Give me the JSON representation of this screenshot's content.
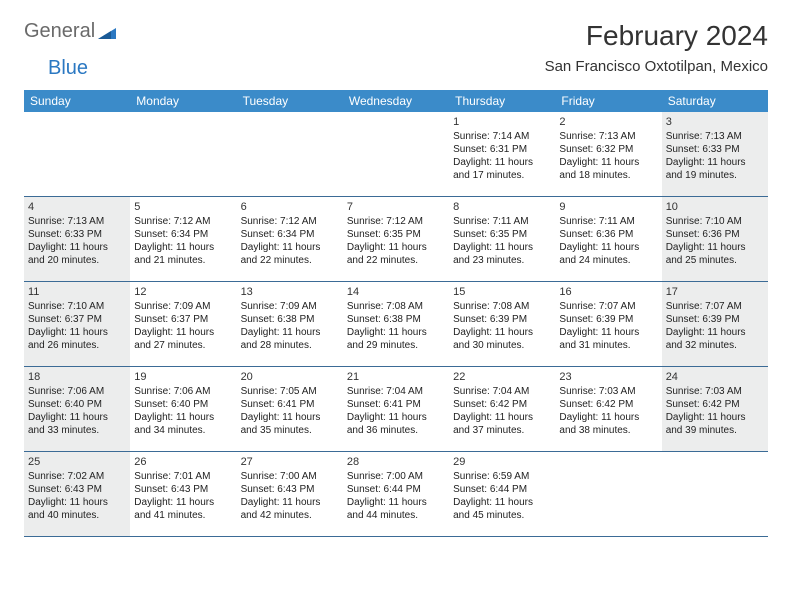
{
  "logo": {
    "text1": "General",
    "text2": "Blue"
  },
  "title": "February 2024",
  "location": "San Francisco Oxtotilpan, Mexico",
  "colors": {
    "header_bg": "#3b8bc9",
    "header_text": "#ffffff",
    "row_border": "#3b6b96",
    "shaded_bg": "#eceded",
    "logo_gray": "#6a6a6a",
    "logo_blue": "#2b78c2"
  },
  "day_headers": [
    "Sunday",
    "Monday",
    "Tuesday",
    "Wednesday",
    "Thursday",
    "Friday",
    "Saturday"
  ],
  "weeks": [
    [
      {
        "day": "",
        "sunrise": "",
        "sunset": "",
        "daylight1": "",
        "daylight2": ""
      },
      {
        "day": "",
        "sunrise": "",
        "sunset": "",
        "daylight1": "",
        "daylight2": ""
      },
      {
        "day": "",
        "sunrise": "",
        "sunset": "",
        "daylight1": "",
        "daylight2": ""
      },
      {
        "day": "",
        "sunrise": "",
        "sunset": "",
        "daylight1": "",
        "daylight2": ""
      },
      {
        "day": "1",
        "sunrise": "Sunrise: 7:14 AM",
        "sunset": "Sunset: 6:31 PM",
        "daylight1": "Daylight: 11 hours",
        "daylight2": "and 17 minutes."
      },
      {
        "day": "2",
        "sunrise": "Sunrise: 7:13 AM",
        "sunset": "Sunset: 6:32 PM",
        "daylight1": "Daylight: 11 hours",
        "daylight2": "and 18 minutes."
      },
      {
        "day": "3",
        "sunrise": "Sunrise: 7:13 AM",
        "sunset": "Sunset: 6:33 PM",
        "daylight1": "Daylight: 11 hours",
        "daylight2": "and 19 minutes."
      }
    ],
    [
      {
        "day": "4",
        "sunrise": "Sunrise: 7:13 AM",
        "sunset": "Sunset: 6:33 PM",
        "daylight1": "Daylight: 11 hours",
        "daylight2": "and 20 minutes."
      },
      {
        "day": "5",
        "sunrise": "Sunrise: 7:12 AM",
        "sunset": "Sunset: 6:34 PM",
        "daylight1": "Daylight: 11 hours",
        "daylight2": "and 21 minutes."
      },
      {
        "day": "6",
        "sunrise": "Sunrise: 7:12 AM",
        "sunset": "Sunset: 6:34 PM",
        "daylight1": "Daylight: 11 hours",
        "daylight2": "and 22 minutes."
      },
      {
        "day": "7",
        "sunrise": "Sunrise: 7:12 AM",
        "sunset": "Sunset: 6:35 PM",
        "daylight1": "Daylight: 11 hours",
        "daylight2": "and 22 minutes."
      },
      {
        "day": "8",
        "sunrise": "Sunrise: 7:11 AM",
        "sunset": "Sunset: 6:35 PM",
        "daylight1": "Daylight: 11 hours",
        "daylight2": "and 23 minutes."
      },
      {
        "day": "9",
        "sunrise": "Sunrise: 7:11 AM",
        "sunset": "Sunset: 6:36 PM",
        "daylight1": "Daylight: 11 hours",
        "daylight2": "and 24 minutes."
      },
      {
        "day": "10",
        "sunrise": "Sunrise: 7:10 AM",
        "sunset": "Sunset: 6:36 PM",
        "daylight1": "Daylight: 11 hours",
        "daylight2": "and 25 minutes."
      }
    ],
    [
      {
        "day": "11",
        "sunrise": "Sunrise: 7:10 AM",
        "sunset": "Sunset: 6:37 PM",
        "daylight1": "Daylight: 11 hours",
        "daylight2": "and 26 minutes."
      },
      {
        "day": "12",
        "sunrise": "Sunrise: 7:09 AM",
        "sunset": "Sunset: 6:37 PM",
        "daylight1": "Daylight: 11 hours",
        "daylight2": "and 27 minutes."
      },
      {
        "day": "13",
        "sunrise": "Sunrise: 7:09 AM",
        "sunset": "Sunset: 6:38 PM",
        "daylight1": "Daylight: 11 hours",
        "daylight2": "and 28 minutes."
      },
      {
        "day": "14",
        "sunrise": "Sunrise: 7:08 AM",
        "sunset": "Sunset: 6:38 PM",
        "daylight1": "Daylight: 11 hours",
        "daylight2": "and 29 minutes."
      },
      {
        "day": "15",
        "sunrise": "Sunrise: 7:08 AM",
        "sunset": "Sunset: 6:39 PM",
        "daylight1": "Daylight: 11 hours",
        "daylight2": "and 30 minutes."
      },
      {
        "day": "16",
        "sunrise": "Sunrise: 7:07 AM",
        "sunset": "Sunset: 6:39 PM",
        "daylight1": "Daylight: 11 hours",
        "daylight2": "and 31 minutes."
      },
      {
        "day": "17",
        "sunrise": "Sunrise: 7:07 AM",
        "sunset": "Sunset: 6:39 PM",
        "daylight1": "Daylight: 11 hours",
        "daylight2": "and 32 minutes."
      }
    ],
    [
      {
        "day": "18",
        "sunrise": "Sunrise: 7:06 AM",
        "sunset": "Sunset: 6:40 PM",
        "daylight1": "Daylight: 11 hours",
        "daylight2": "and 33 minutes."
      },
      {
        "day": "19",
        "sunrise": "Sunrise: 7:06 AM",
        "sunset": "Sunset: 6:40 PM",
        "daylight1": "Daylight: 11 hours",
        "daylight2": "and 34 minutes."
      },
      {
        "day": "20",
        "sunrise": "Sunrise: 7:05 AM",
        "sunset": "Sunset: 6:41 PM",
        "daylight1": "Daylight: 11 hours",
        "daylight2": "and 35 minutes."
      },
      {
        "day": "21",
        "sunrise": "Sunrise: 7:04 AM",
        "sunset": "Sunset: 6:41 PM",
        "daylight1": "Daylight: 11 hours",
        "daylight2": "and 36 minutes."
      },
      {
        "day": "22",
        "sunrise": "Sunrise: 7:04 AM",
        "sunset": "Sunset: 6:42 PM",
        "daylight1": "Daylight: 11 hours",
        "daylight2": "and 37 minutes."
      },
      {
        "day": "23",
        "sunrise": "Sunrise: 7:03 AM",
        "sunset": "Sunset: 6:42 PM",
        "daylight1": "Daylight: 11 hours",
        "daylight2": "and 38 minutes."
      },
      {
        "day": "24",
        "sunrise": "Sunrise: 7:03 AM",
        "sunset": "Sunset: 6:42 PM",
        "daylight1": "Daylight: 11 hours",
        "daylight2": "and 39 minutes."
      }
    ],
    [
      {
        "day": "25",
        "sunrise": "Sunrise: 7:02 AM",
        "sunset": "Sunset: 6:43 PM",
        "daylight1": "Daylight: 11 hours",
        "daylight2": "and 40 minutes."
      },
      {
        "day": "26",
        "sunrise": "Sunrise: 7:01 AM",
        "sunset": "Sunset: 6:43 PM",
        "daylight1": "Daylight: 11 hours",
        "daylight2": "and 41 minutes."
      },
      {
        "day": "27",
        "sunrise": "Sunrise: 7:00 AM",
        "sunset": "Sunset: 6:43 PM",
        "daylight1": "Daylight: 11 hours",
        "daylight2": "and 42 minutes."
      },
      {
        "day": "28",
        "sunrise": "Sunrise: 7:00 AM",
        "sunset": "Sunset: 6:44 PM",
        "daylight1": "Daylight: 11 hours",
        "daylight2": "and 44 minutes."
      },
      {
        "day": "29",
        "sunrise": "Sunrise: 6:59 AM",
        "sunset": "Sunset: 6:44 PM",
        "daylight1": "Daylight: 11 hours",
        "daylight2": "and 45 minutes."
      },
      {
        "day": "",
        "sunrise": "",
        "sunset": "",
        "daylight1": "",
        "daylight2": ""
      },
      {
        "day": "",
        "sunrise": "",
        "sunset": "",
        "daylight1": "",
        "daylight2": ""
      }
    ]
  ]
}
